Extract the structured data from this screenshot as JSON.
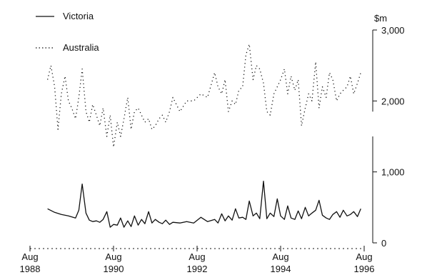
{
  "chart_data": {
    "type": "line",
    "unit_label": "$m",
    "legend": [
      {
        "label": "Victoria",
        "style": "solid"
      },
      {
        "label": "Australia",
        "style": "dotted"
      }
    ],
    "y_axis": {
      "position": "right",
      "ticks": [
        0,
        1000,
        2000,
        3000
      ],
      "tick_labels": [
        "0",
        "1,000",
        "2,000",
        "3,000"
      ],
      "ylim": [
        0,
        3000
      ]
    },
    "x_axis": {
      "tick_labels": [
        {
          "top": "Aug",
          "bottom": "1988",
          "date": 1988.58
        },
        {
          "top": "Aug",
          "bottom": "1990",
          "date": 1990.58
        },
        {
          "top": "Aug",
          "bottom": "1992",
          "date": 1992.58
        },
        {
          "top": "Aug",
          "bottom": "1994",
          "date": 1994.58
        },
        {
          "top": "Aug",
          "bottom": "1996",
          "date": 1996.58
        }
      ],
      "xlim": [
        1988.58,
        1996.58
      ]
    },
    "series": [
      {
        "name": "Victoria",
        "style": "solid",
        "color": "#111111",
        "x": [
          1989.0,
          1989.17,
          1989.33,
          1989.5,
          1989.67,
          1989.75,
          1989.83,
          1989.92,
          1990.0,
          1990.08,
          1990.17,
          1990.25,
          1990.33,
          1990.42,
          1990.5,
          1990.58,
          1990.67,
          1990.75,
          1990.83,
          1990.92,
          1991.0,
          1991.08,
          1991.17,
          1991.25,
          1991.33,
          1991.42,
          1991.5,
          1991.58,
          1991.67,
          1991.75,
          1991.83,
          1991.92,
          1992.0,
          1992.17,
          1992.33,
          1992.5,
          1992.67,
          1992.83,
          1993.0,
          1993.08,
          1993.17,
          1993.25,
          1993.33,
          1993.42,
          1993.5,
          1993.58,
          1993.67,
          1993.75,
          1993.83,
          1993.92,
          1994.0,
          1994.08,
          1994.17,
          1994.25,
          1994.33,
          1994.42,
          1994.5,
          1994.58,
          1994.67,
          1994.75,
          1994.83,
          1994.92,
          1995.0,
          1995.08,
          1995.17,
          1995.25,
          1995.33,
          1995.42,
          1995.5,
          1995.58,
          1995.67,
          1995.75,
          1995.83,
          1995.92,
          1996.0,
          1996.08,
          1996.17,
          1996.25,
          1996.33,
          1996.42,
          1996.5
        ],
        "values": [
          480,
          430,
          400,
          380,
          350,
          460,
          830,
          420,
          320,
          300,
          310,
          290,
          330,
          440,
          220,
          260,
          250,
          350,
          220,
          310,
          230,
          380,
          250,
          330,
          270,
          440,
          280,
          330,
          290,
          270,
          320,
          260,
          290,
          280,
          300,
          280,
          360,
          300,
          330,
          280,
          410,
          310,
          380,
          320,
          480,
          350,
          360,
          330,
          590,
          380,
          420,
          340,
          870,
          340,
          420,
          370,
          620,
          380,
          330,
          520,
          350,
          330,
          450,
          340,
          500,
          380,
          420,
          460,
          600,
          390,
          350,
          330,
          400,
          440,
          360,
          460,
          380,
          400,
          440,
          370,
          480
        ]
      },
      {
        "name": "Australia",
        "style": "dotted",
        "color": "#111111",
        "x": [
          1989.0,
          1989.08,
          1989.17,
          1989.25,
          1989.33,
          1989.42,
          1989.5,
          1989.58,
          1989.67,
          1989.75,
          1989.83,
          1989.92,
          1990.0,
          1990.08,
          1990.17,
          1990.25,
          1990.33,
          1990.42,
          1990.5,
          1990.58,
          1990.67,
          1990.75,
          1990.83,
          1990.92,
          1991.0,
          1991.08,
          1991.17,
          1991.25,
          1991.33,
          1991.42,
          1991.5,
          1991.58,
          1991.67,
          1991.75,
          1991.83,
          1991.92,
          1992.0,
          1992.17,
          1992.33,
          1992.5,
          1992.67,
          1992.83,
          1993.0,
          1993.08,
          1993.17,
          1993.25,
          1993.33,
          1993.42,
          1993.5,
          1993.58,
          1993.67,
          1993.75,
          1993.83,
          1993.92,
          1994.0,
          1994.08,
          1994.17,
          1994.25,
          1994.33,
          1994.42,
          1994.5,
          1994.58,
          1994.67,
          1994.75,
          1994.83,
          1994.92,
          1995.0,
          1995.08,
          1995.17,
          1995.25,
          1995.33,
          1995.42,
          1995.5,
          1995.58,
          1995.67,
          1995.75,
          1995.83,
          1995.92,
          1996.0,
          1996.08,
          1996.17,
          1996.25,
          1996.33,
          1996.42,
          1996.5
        ],
        "values": [
          2300,
          2500,
          2200,
          1600,
          2100,
          2350,
          2000,
          1900,
          1750,
          2050,
          2450,
          1850,
          1700,
          1950,
          1800,
          1650,
          1900,
          1500,
          1800,
          1350,
          1700,
          1500,
          1750,
          2050,
          1600,
          1850,
          1900,
          1800,
          1700,
          1750,
          1600,
          1650,
          1750,
          1800,
          1700,
          1850,
          2050,
          1850,
          2000,
          2000,
          2100,
          2050,
          2400,
          2200,
          2100,
          2300,
          1850,
          2000,
          1950,
          2150,
          2200,
          2650,
          2800,
          2300,
          2500,
          2450,
          2250,
          1850,
          1800,
          2100,
          2200,
          2300,
          2450,
          2100,
          2350,
          2150,
          2300,
          1650,
          1900,
          2100,
          2000,
          2550,
          1900,
          2200,
          2050,
          2400,
          2300,
          2000,
          2100,
          2150,
          2200,
          2350,
          2100,
          2250,
          2400
        ]
      }
    ]
  }
}
